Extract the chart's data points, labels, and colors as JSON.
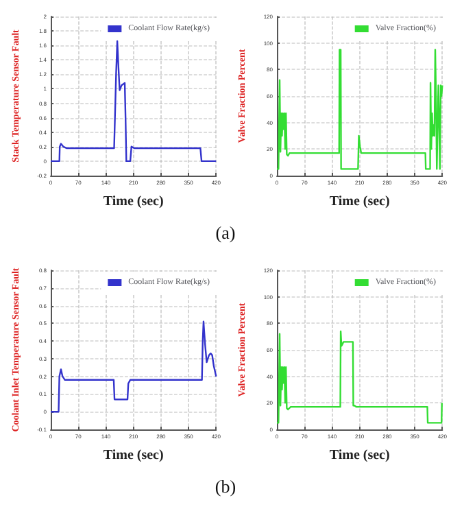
{
  "chart_data": [
    {
      "type": "line",
      "xlabel": "Time (sec)",
      "ylabel": "Stack Temperature Sensor Fault",
      "annotations": [
        "(a)"
      ],
      "xlim": [
        0,
        420
      ],
      "xticks": [
        0,
        70,
        140,
        210,
        280,
        350,
        420
      ],
      "ylim": [
        -0.2,
        2.0
      ],
      "yticks": [
        -0.2,
        0,
        0.2,
        0.4,
        0.6,
        0.8,
        1.0,
        1.2,
        1.4,
        1.6,
        1.8,
        2.0
      ],
      "grid": true,
      "legend": "top right",
      "marker": "none",
      "line_style": "solid",
      "series": [
        {
          "name": "Coolant Flow Rate(kg/s)",
          "color": "#3333cc",
          "x": [
            0,
            22,
            23,
            26,
            32,
            40,
            161,
            166,
            169,
            172,
            175,
            180,
            188,
            190,
            192,
            196,
            202,
            205,
            212,
            380,
            382,
            383,
            420
          ],
          "values": [
            0,
            0,
            0.2,
            0.24,
            0.2,
            0.18,
            0.18,
            1.2,
            1.66,
            1.3,
            0.98,
            1.05,
            1.08,
            0.6,
            0,
            0,
            0,
            0.2,
            0.18,
            0.18,
            0.18,
            0,
            0
          ]
        }
      ]
    },
    {
      "type": "line",
      "xlabel": "Time (sec)",
      "ylabel": "Valve Fraction Percent",
      "xlim": [
        0,
        420
      ],
      "xticks": [
        0,
        70,
        140,
        210,
        280,
        350,
        420
      ],
      "ylim": [
        0,
        120
      ],
      "yticks": [
        0,
        20,
        40,
        60,
        80,
        100,
        120
      ],
      "grid": true,
      "legend": "top right",
      "marker": "none",
      "line_style": "solid",
      "series": [
        {
          "name": "Valve Fraction(%)",
          "color": "#33dd33",
          "x": [
            0,
            4,
            7,
            9,
            11,
            13,
            15,
            17,
            19,
            21,
            23,
            25,
            28,
            32,
            40,
            158,
            159,
            162,
            163,
            206,
            208,
            211,
            214,
            377,
            378,
            389,
            390,
            392,
            394,
            396,
            398,
            400,
            402,
            404,
            406,
            408,
            410,
            412,
            414,
            416,
            418,
            420
          ],
          "values": [
            5,
            5,
            72,
            18,
            47,
            30,
            47,
            35,
            47,
            20,
            47,
            16,
            15,
            17,
            17,
            17,
            95,
            95,
            5,
            5,
            30,
            22,
            17,
            17,
            5,
            5,
            70,
            20,
            47,
            30,
            38,
            30,
            95,
            60,
            5,
            5,
            68,
            40,
            5,
            68,
            60,
            68
          ]
        }
      ]
    },
    {
      "type": "line",
      "xlabel": "Time (sec)",
      "ylabel": "Coolant Inlet Temperature Sensor Fault",
      "annotations": [
        "(b)"
      ],
      "xlim": [
        0,
        420
      ],
      "xticks": [
        0,
        70,
        140,
        210,
        280,
        350,
        420
      ],
      "ylim": [
        -0.1,
        0.8
      ],
      "yticks": [
        -0.1,
        0.0,
        0.1,
        0.2,
        0.3,
        0.4,
        0.5,
        0.6,
        0.7,
        0.8
      ],
      "grid": true,
      "legend": "top right",
      "marker": "none",
      "line_style": "solid",
      "series": [
        {
          "name": "Coolant Flow Rate(kg/s)",
          "color": "#3333cc",
          "x": [
            0,
            20,
            22,
            26,
            30,
            36,
            160,
            162,
            195,
            197,
            202,
            384,
            386,
            388,
            392,
            396,
            402,
            406,
            410,
            414,
            420
          ],
          "values": [
            0,
            0,
            0.2,
            0.24,
            0.2,
            0.18,
            0.18,
            0.07,
            0.07,
            0.16,
            0.18,
            0.18,
            0.4,
            0.51,
            0.38,
            0.28,
            0.32,
            0.33,
            0.32,
            0.26,
            0.2
          ]
        }
      ]
    },
    {
      "type": "line",
      "xlabel": "Time (sec)",
      "ylabel": "Valve Fraction Percent",
      "xlim": [
        0,
        420
      ],
      "xticks": [
        0,
        70,
        140,
        210,
        280,
        350,
        420
      ],
      "ylim": [
        0,
        120
      ],
      "yticks": [
        0,
        20,
        40,
        60,
        80,
        100,
        120
      ],
      "grid": true,
      "legend": "top right",
      "marker": "none",
      "line_style": "solid",
      "series": [
        {
          "name": "Valve Fraction(%)",
          "color": "#33dd33",
          "x": [
            0,
            4,
            7,
            9,
            11,
            13,
            15,
            17,
            19,
            21,
            23,
            25,
            28,
            35,
            161,
            162,
            164,
            166,
            169,
            193,
            194,
            197,
            202,
            382,
            383,
            418,
            419,
            420
          ],
          "values": [
            5,
            5,
            72,
            18,
            47,
            30,
            47,
            35,
            47,
            20,
            47,
            16,
            15,
            17,
            17,
            74,
            63,
            64,
            66,
            66,
            18,
            18,
            17,
            17,
            5,
            5,
            20,
            20
          ]
        }
      ]
    }
  ]
}
